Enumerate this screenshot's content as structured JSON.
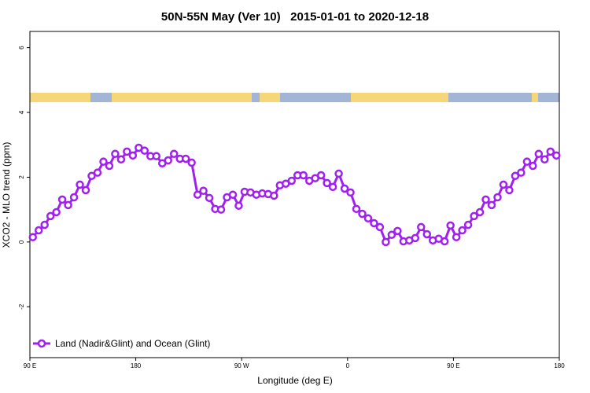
{
  "chart_data": {
    "type": "line",
    "title": "50N-55N May (Ver 10)   2015-01-01 to 2020-12-18",
    "x_label": "Longitude (deg E)",
    "y_label": "XCO2 - MLO trend (ppm)",
    "x": [
      92.5,
      97.5,
      102.5,
      107.5,
      112.5,
      117.5,
      122.5,
      127.5,
      132.5,
      137.5,
      142.5,
      147.5,
      152.5,
      157.5,
      162.5,
      167.5,
      172.5,
      177.5,
      182.5,
      187.5,
      192.5,
      197.5,
      202.5,
      207.5,
      212.5,
      217.5,
      222.5,
      227.5,
      232.5,
      237.5,
      242.5,
      247.5,
      252.5,
      257.5,
      262.5,
      267.5,
      272.5,
      277.5,
      282.5,
      287.5,
      292.5,
      297.5,
      302.5,
      307.5,
      312.5,
      317.5,
      322.5,
      327.5,
      332.5,
      337.5,
      342.5,
      347.5,
      352.5,
      357.5,
      362.5,
      367.5,
      372.5,
      377.5,
      382.5,
      387.5,
      392.5,
      397.5,
      402.5,
      407.5,
      412.5,
      417.5,
      422.5,
      427.5,
      432.5,
      437.5,
      442.5,
      447.5,
      452.5,
      457.5,
      462.5,
      467.5,
      472.5,
      477.5,
      482.5,
      487.5,
      492.5,
      497.5,
      502.5,
      507.5,
      512.5,
      517.5,
      522.5,
      527.5,
      532.5,
      537.5
    ],
    "series": [
      {
        "name": "Land (Nadir&Glint) and Ocean (Glint)",
        "color": "#a020f0",
        "values": [
          0.15,
          0.36,
          0.53,
          0.8,
          0.92,
          1.31,
          1.14,
          1.38,
          1.77,
          1.6,
          2.04,
          2.14,
          2.48,
          2.35,
          2.72,
          2.55,
          2.79,
          2.67,
          2.91,
          2.82,
          2.65,
          2.65,
          2.43,
          2.52,
          2.72,
          2.57,
          2.57,
          2.45,
          1.46,
          1.58,
          1.36,
          1.02,
          1.0,
          1.38,
          1.46,
          1.12,
          1.55,
          1.53,
          1.46,
          1.5,
          1.48,
          1.43,
          1.75,
          1.8,
          1.89,
          2.06,
          2.06,
          1.89,
          1.97,
          2.06,
          1.82,
          1.7,
          2.11,
          1.65,
          1.53,
          1.02,
          0.87,
          0.73,
          0.58,
          0.46,
          0.0,
          0.22,
          0.34,
          0.02,
          0.05,
          0.12,
          0.46,
          0.24,
          0.05,
          0.1,
          0.02,
          0.51,
          0.15,
          0.36,
          0.53,
          0.8,
          0.92,
          1.31,
          1.14,
          1.38,
          1.77,
          1.6,
          2.04,
          2.14,
          2.48,
          2.35,
          2.72,
          2.55,
          2.79,
          2.67
        ]
      }
    ],
    "xlim": [
      90,
      540
    ],
    "xticks": [
      {
        "value": 90,
        "label": "90 E"
      },
      180,
      {
        "value": 270,
        "label": "90 W"
      },
      0,
      {
        "value": 450,
        "label": "90 E"
      },
      {
        "value": 540,
        "label": "180"
      }
    ],
    "ylim": [
      -3.57,
      6.5
    ],
    "yticks": [
      -2,
      0,
      2,
      4,
      6
    ],
    "legend": "bottom-left"
  }
}
